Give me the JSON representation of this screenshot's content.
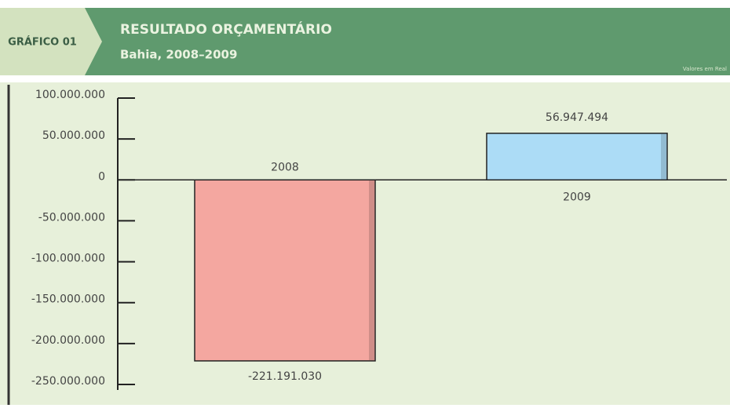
{
  "badge": "GRÁFICO 01",
  "chart_data": {
    "type": "bar",
    "title": "RESULTADO ORÇAMENTÁRIO",
    "subtitle": "Bahia, 2008–2009",
    "note": "Valores em Real",
    "categories": [
      "2008",
      "2009"
    ],
    "values": [
      -221191030,
      56947494
    ],
    "value_labels": [
      "-221.191.030",
      "56.947.494"
    ],
    "colors": [
      "#f4a7a0",
      "#acdcf6"
    ],
    "ylim": [
      -250000000,
      100000000
    ],
    "yticks": [
      {
        "value": 100000000,
        "label": "100.000.000"
      },
      {
        "value": 50000000,
        "label": "50.000.000"
      },
      0,
      {
        "value": -50000000,
        "label": "-50.000.000"
      },
      {
        "value": -100000000,
        "label": "-100.000.000"
      },
      {
        "value": -150000000,
        "label": "-150.000.000"
      },
      {
        "value": -200000000,
        "label": "-200.000.000"
      },
      {
        "value": -250000000,
        "label": "-250.000.000"
      }
    ]
  }
}
